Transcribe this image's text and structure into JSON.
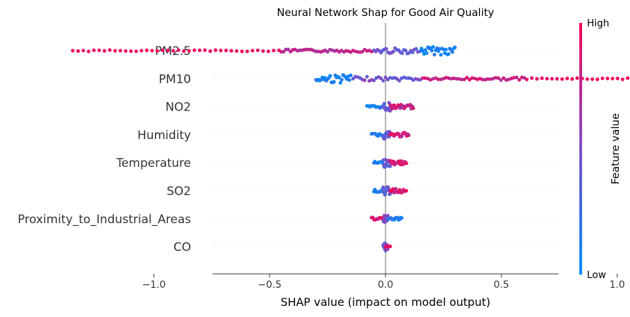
{
  "chart_data": {
    "type": "scatter",
    "subtype": "shap-beeswarm",
    "title": "Neural Network Shap for Good Air Quality",
    "xlabel": "SHAP value (impact on model output)",
    "ylabel": "",
    "xlim": [
      -1.5,
      1.5
    ],
    "x_ticks": [
      -1.0,
      -0.5,
      0.0,
      0.5,
      1.0
    ],
    "x_tick_labels": [
      "−1.0",
      "−0.5",
      "0.0",
      "0.5",
      "1.0"
    ],
    "zero_line": 0.0,
    "grid": false,
    "colorbar": {
      "label": "Feature value",
      "high_label": "High",
      "low_label": "Low",
      "high_color": "#ff0052",
      "low_color": "#008bfb",
      "position": "right"
    },
    "features": [
      {
        "name": "PM2.5",
        "segments": [
          {
            "from": 0.15,
            "to": 0.3,
            "count": 28,
            "value_range": [
              0.0,
              0.2
            ],
            "spread": 6
          },
          {
            "from": -0.05,
            "to": 0.14,
            "count": 26,
            "value_range": [
              0.3,
              0.55
            ],
            "spread": 4
          },
          {
            "from": -0.45,
            "to": -0.06,
            "count": 40,
            "value_range": [
              0.65,
              0.85
            ],
            "spread": 2
          },
          {
            "from": -1.35,
            "to": -0.46,
            "count": 40,
            "value_range": [
              0.9,
              1.0
            ],
            "spread": 1
          }
        ]
      },
      {
        "name": "PM10",
        "segments": [
          {
            "from": -0.3,
            "to": -0.15,
            "count": 28,
            "value_range": [
              0.0,
              0.2
            ],
            "spread": 6
          },
          {
            "from": -0.14,
            "to": 0.15,
            "count": 30,
            "value_range": [
              0.35,
              0.6
            ],
            "spread": 3
          },
          {
            "from": 0.16,
            "to": 0.6,
            "count": 40,
            "value_range": [
              0.7,
              0.9
            ],
            "spread": 2
          },
          {
            "from": 0.61,
            "to": 1.35,
            "count": 35,
            "value_range": [
              0.9,
              1.0
            ],
            "spread": 1
          }
        ]
      },
      {
        "name": "NO2",
        "segments": [
          {
            "from": -0.08,
            "to": -0.01,
            "count": 12,
            "value_range": [
              0.0,
              0.25
            ],
            "spread": 2
          },
          {
            "from": -0.01,
            "to": 0.02,
            "count": 14,
            "value_range": [
              0.3,
              0.5
            ],
            "spread": 6
          },
          {
            "from": 0.02,
            "to": 0.12,
            "count": 24,
            "value_range": [
              0.6,
              1.0
            ],
            "spread": 3
          }
        ]
      },
      {
        "name": "Humidity",
        "segments": [
          {
            "from": -0.06,
            "to": -0.01,
            "count": 10,
            "value_range": [
              0.0,
              0.25
            ],
            "spread": 2
          },
          {
            "from": -0.01,
            "to": 0.02,
            "count": 14,
            "value_range": [
              0.3,
              0.5
            ],
            "spread": 6
          },
          {
            "from": 0.02,
            "to": 0.1,
            "count": 20,
            "value_range": [
              0.65,
              1.0
            ],
            "spread": 3
          }
        ]
      },
      {
        "name": "Temperature",
        "segments": [
          {
            "from": -0.05,
            "to": -0.01,
            "count": 10,
            "value_range": [
              0.0,
              0.25
            ],
            "spread": 2
          },
          {
            "from": -0.01,
            "to": 0.02,
            "count": 14,
            "value_range": [
              0.3,
              0.5
            ],
            "spread": 6
          },
          {
            "from": 0.02,
            "to": 0.09,
            "count": 20,
            "value_range": [
              0.7,
              1.0
            ],
            "spread": 3
          }
        ]
      },
      {
        "name": "SO2",
        "segments": [
          {
            "from": -0.05,
            "to": -0.01,
            "count": 10,
            "value_range": [
              0.0,
              0.25
            ],
            "spread": 2
          },
          {
            "from": -0.01,
            "to": 0.02,
            "count": 14,
            "value_range": [
              0.3,
              0.5
            ],
            "spread": 6
          },
          {
            "from": 0.02,
            "to": 0.09,
            "count": 18,
            "value_range": [
              0.7,
              1.0
            ],
            "spread": 3
          }
        ]
      },
      {
        "name": "Proximity_to_Industrial_Areas",
        "segments": [
          {
            "from": -0.06,
            "to": -0.01,
            "count": 10,
            "value_range": [
              0.75,
              1.0
            ],
            "spread": 2
          },
          {
            "from": -0.01,
            "to": 0.01,
            "count": 14,
            "value_range": [
              0.4,
              0.6
            ],
            "spread": 6
          },
          {
            "from": 0.01,
            "to": 0.07,
            "count": 14,
            "value_range": [
              0.0,
              0.25
            ],
            "spread": 2
          }
        ]
      },
      {
        "name": "CO",
        "segments": [
          {
            "from": -0.01,
            "to": 0.01,
            "count": 18,
            "value_range": [
              0.25,
              0.7
            ],
            "spread": 6
          },
          {
            "from": 0.0,
            "to": 0.02,
            "count": 4,
            "value_range": [
              0.85,
              1.0
            ],
            "spread": 1
          }
        ]
      }
    ]
  }
}
